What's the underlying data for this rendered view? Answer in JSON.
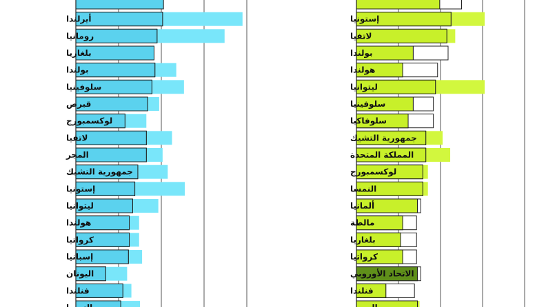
{
  "chart_data": [
    {
      "type": "bar",
      "title": "",
      "xlabel": "",
      "ylabel": "",
      "categories": [
        "",
        "أيرلندا",
        "رومانيا",
        "بلغاريا",
        "بولندا",
        "سلوفينيا",
        "قبرص",
        "لوكسمبورج",
        "لاتفيا",
        "المجر",
        "جمهورية التشيك",
        "إستونيا",
        "ليتوانيا",
        "هولندا",
        "كرواتيا",
        "إسبانيا",
        "اليونان",
        "فنلندا",
        "النمسا"
      ],
      "xlim": [
        0,
        40
      ],
      "grid": true,
      "series": [
        {
          "values": [
            20.5,
            20.3,
            19.0,
            18.3,
            18.5,
            17.8,
            16.8,
            11.5,
            16.5,
            16.5,
            14.5,
            13.8,
            13.3,
            12.5,
            12.5,
            12.3,
            7.0,
            11.0,
            10.5
          ],
          "color": "#5bd2ee"
        },
        {
          "values": [
            20.5,
            39.0,
            34.8,
            18.3,
            23.5,
            25.3,
            19.5,
            16.5,
            22.5,
            20.3,
            21.5,
            25.5,
            19.3,
            14.8,
            14.8,
            15.5,
            12.0,
            13.0,
            15.0
          ],
          "color": "#79e6fa"
        }
      ]
    },
    {
      "type": "bar",
      "title": "",
      "xlabel": "",
      "ylabel": "",
      "categories": [
        "",
        "إستونيا",
        "لاتفيا",
        "بولندا",
        "هولندا",
        "ليتوانيا",
        "سلوفينيا",
        "سلوفاكيا",
        "جمهورية التشيك",
        "المملكة المتحدة",
        "لوكسمبورج",
        "النمسا",
        "ألمانيا",
        "مالطة",
        "بلغاريا",
        "كرواتيا",
        "الاتحاد الأوروبي",
        "فنلندا",
        "السويد"
      ],
      "xlim": [
        0,
        40
      ],
      "grid": true,
      "highlight": "الاتحاد الأوروبي",
      "series": [
        {
          "values": [
            19.8,
            22.5,
            21.5,
            13.5,
            11.0,
            18.8,
            13.5,
            12.3,
            16.5,
            16.5,
            15.8,
            15.8,
            14.5,
            11.0,
            10.5,
            11.0,
            14.5,
            7.0,
            14.5
          ],
          "color": "#c8f02a"
        },
        {
          "values": [
            19.8,
            30.5,
            23.5,
            21.8,
            19.3,
            30.5,
            18.3,
            18.3,
            20.5,
            22.3,
            17.0,
            17.0,
            14.5,
            14.3,
            14.3,
            14.3,
            14.5,
            13.8,
            15.0
          ],
          "color": "#d2f73e"
        },
        {
          "values": [
            25.0,
            0,
            0,
            21.8,
            19.3,
            0,
            18.3,
            18.3,
            0,
            0,
            0,
            0,
            15.3,
            14.3,
            14.3,
            14.3,
            15.3,
            13.8,
            0
          ],
          "color": "#ffffff"
        }
      ]
    }
  ]
}
